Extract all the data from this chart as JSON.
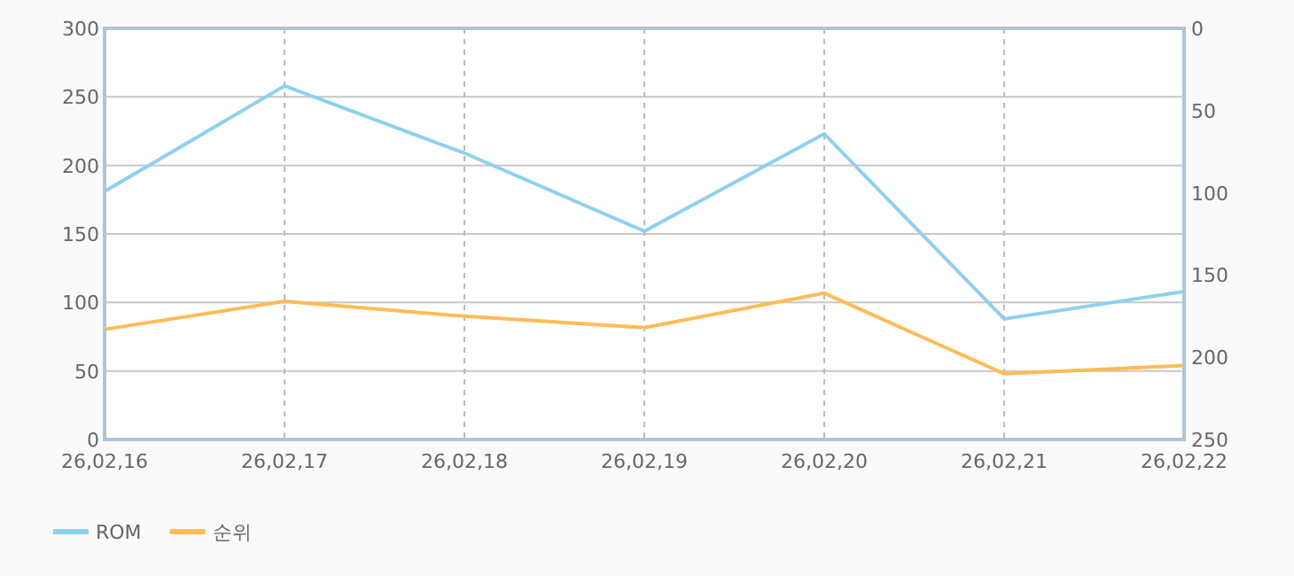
{
  "chart_data": {
    "type": "line",
    "categories": [
      "26,02,16",
      "26,02,17",
      "26,02,18",
      "26,02,19",
      "26,02,20",
      "26,02,21",
      "26,02,22"
    ],
    "series": [
      {
        "name": "ROM",
        "color": "#8fd0f0",
        "values": [
          181,
          258,
          209,
          152,
          223,
          88,
          108
        ]
      },
      {
        "name": "순위",
        "color": "#ffbb55",
        "axis": "y2",
        "values": [
          183,
          166,
          175,
          182,
          161,
          210,
          205
        ]
      }
    ],
    "ylim": [
      0,
      300
    ],
    "yticks": [
      0,
      50,
      100,
      150,
      200,
      250,
      300
    ],
    "y2lim": [
      250,
      0
    ],
    "y2ticks": [
      0,
      50,
      100,
      150,
      200,
      250
    ],
    "grid": true,
    "legend": "bottom left",
    "marker": "none",
    "line_style": "solid"
  }
}
